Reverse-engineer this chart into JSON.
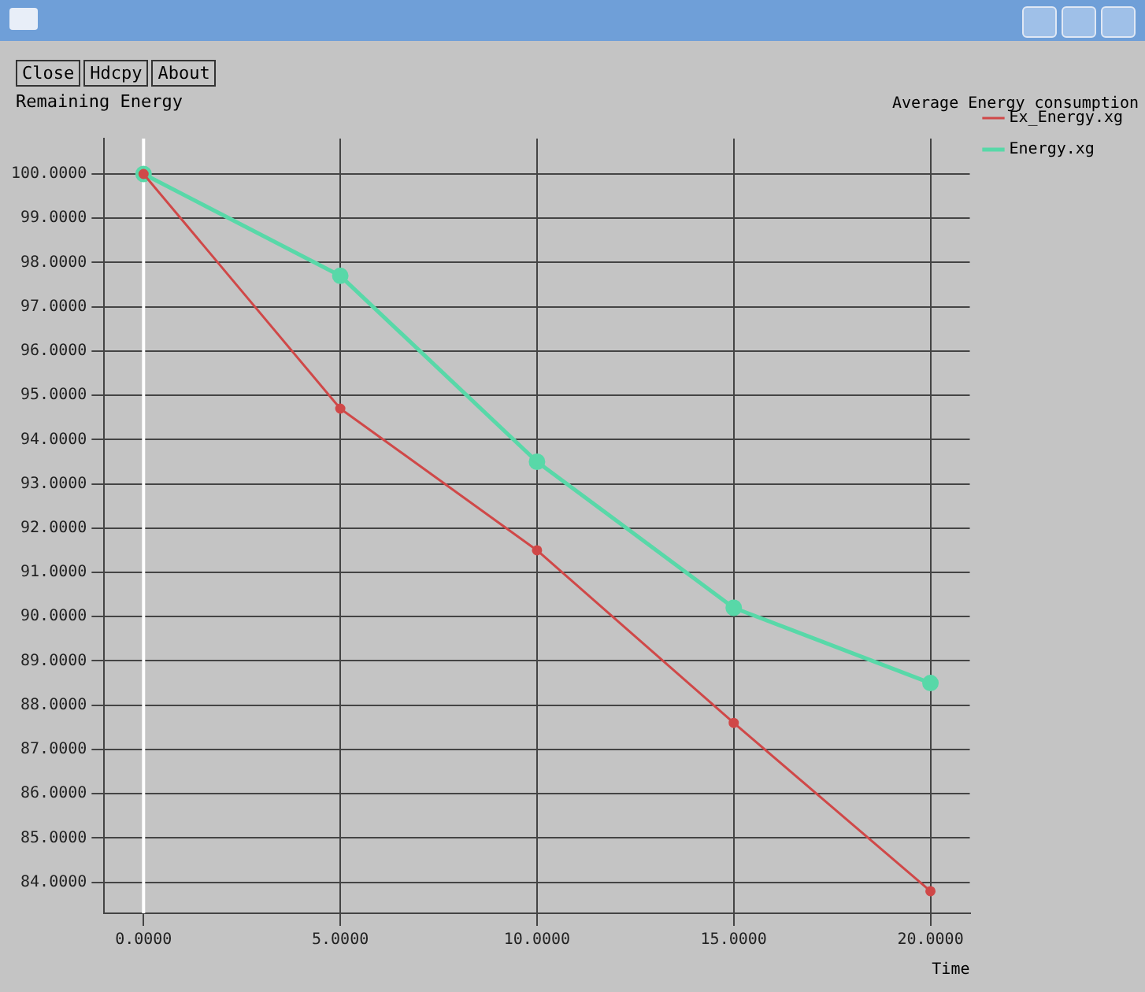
{
  "chart_data": {
    "type": "line",
    "title": "Average Energy consumption",
    "xlabel": "Time",
    "ylabel": "Remaining Energy",
    "annotations": [
      "Close",
      "Hdcpy",
      "About"
    ],
    "x": [
      0,
      5,
      10,
      15,
      20
    ],
    "series": [
      {
        "name": "Ex_Energy.xg",
        "color": "#d04848",
        "values": [
          100,
          94.7,
          91.5,
          87.6,
          83.8
        ]
      },
      {
        "name": "Energy.xg",
        "color": "#58d8a8",
        "values": [
          100,
          97.7,
          93.5,
          90.2,
          88.5
        ]
      }
    ],
    "xlim": [
      -1,
      21
    ],
    "xticks": [
      {
        "value": 0,
        "label": "0.0000"
      },
      {
        "value": 5,
        "label": "5.0000"
      },
      {
        "value": 10,
        "label": "10.0000"
      },
      {
        "value": 15,
        "label": "15.0000"
      },
      {
        "value": 20,
        "label": "20.0000"
      }
    ],
    "ylim": [
      83.3,
      100.8
    ],
    "yticks": [
      {
        "value": 84,
        "label": "84.0000"
      },
      {
        "value": 85,
        "label": "85.0000"
      },
      {
        "value": 86,
        "label": "86.0000"
      },
      {
        "value": 87,
        "label": "87.0000"
      },
      {
        "value": 88,
        "label": "88.0000"
      },
      {
        "value": 89,
        "label": "89.0000"
      },
      {
        "value": 90,
        "label": "90.0000"
      },
      {
        "value": 91,
        "label": "91.0000"
      },
      {
        "value": 92,
        "label": "92.0000"
      },
      {
        "value": 93,
        "label": "93.0000"
      },
      {
        "value": 94,
        "label": "94.0000"
      },
      {
        "value": 95,
        "label": "95.0000"
      },
      {
        "value": 96,
        "label": "96.0000"
      },
      {
        "value": 97,
        "label": "97.0000"
      },
      {
        "value": 98,
        "label": "98.0000"
      },
      {
        "value": 99,
        "label": "99.0000"
      },
      {
        "value": 100,
        "label": "100.0000"
      }
    ],
    "ref_lines": [
      {
        "axis": "x",
        "value": 0,
        "color": "#ffffff"
      }
    ],
    "grid": true,
    "legend": "top right",
    "marker": "circle",
    "line_style": "solid"
  }
}
